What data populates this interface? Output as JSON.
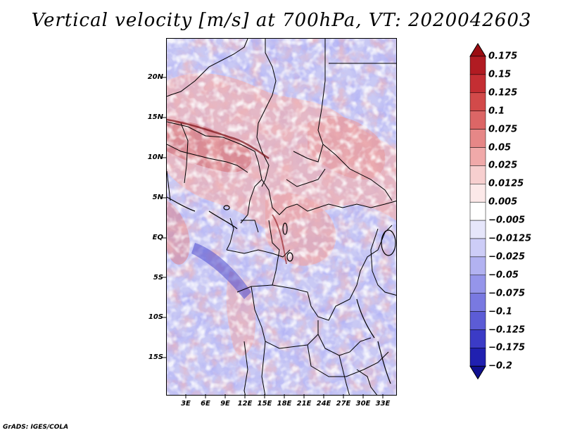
{
  "title": "Vertical velocity [m/s] at 700hPa, VT: 2020042603",
  "footer": "GrADS: IGES/COLA",
  "lat_labels": [
    "20N",
    "15N",
    "10N",
    "5N",
    "EQ",
    "5S",
    "10S",
    "15S"
  ],
  "lon_labels": [
    "3E",
    "6E",
    "9E",
    "12E",
    "15E",
    "18E",
    "21E",
    "24E",
    "27E",
    "30E",
    "33E"
  ],
  "colorbar": {
    "labels": [
      "0.175",
      "0.15",
      "0.125",
      "0.1",
      "0.075",
      "0.05",
      "0.025",
      "0.0125",
      "0.005",
      "−0.005",
      "−0.0125",
      "−0.025",
      "−0.05",
      "−0.075",
      "−0.1",
      "−0.125",
      "−0.175",
      "−0.2"
    ],
    "colors": [
      "#9b0d12",
      "#b11b22",
      "#c42e33",
      "#d24a4a",
      "#dc6666",
      "#e68787",
      "#f0a9a9",
      "#f7cfcf",
      "#fce9e9",
      "#ffffff",
      "#e6e6fb",
      "#cdcdf7",
      "#b2b2f1",
      "#9595ea",
      "#7979e1",
      "#5c5cd6",
      "#3b3bc6",
      "#2020b0",
      "#10108f"
    ]
  }
}
